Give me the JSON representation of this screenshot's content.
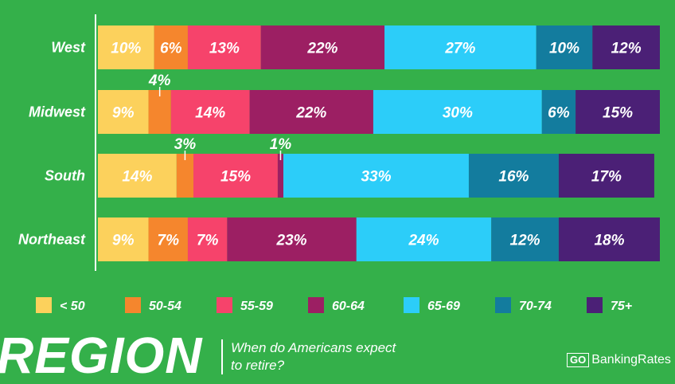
{
  "chart_data": {
    "type": "bar",
    "orientation": "horizontal",
    "stacked": true,
    "categories": [
      "West",
      "Midwest",
      "South",
      "Northeast"
    ],
    "series": [
      {
        "name": "< 50",
        "color": "#fcd15c",
        "values": [
          10,
          9,
          14,
          9
        ]
      },
      {
        "name": "50-54",
        "color": "#f5862d",
        "values": [
          6,
          4,
          3,
          7
        ]
      },
      {
        "name": "55-59",
        "color": "#f6436b",
        "values": [
          13,
          14,
          15,
          7
        ]
      },
      {
        "name": "60-64",
        "color": "#9c1f63",
        "values": [
          22,
          22,
          1,
          23
        ]
      },
      {
        "name": "65-69",
        "color": "#2ccdf9",
        "values": [
          27,
          30,
          33,
          24
        ]
      },
      {
        "name": "70-74",
        "color": "#137c9e",
        "values": [
          10,
          6,
          16,
          12
        ]
      },
      {
        "name": "75+",
        "color": "#4b2076",
        "values": [
          12,
          15,
          17,
          18
        ]
      }
    ],
    "value_suffix": "%",
    "xlim": [
      0,
      100
    ],
    "legend_position": "bottom"
  },
  "footer": {
    "title": "REGION",
    "question": "When do Americans expect to retire?",
    "brand_go": "GO",
    "brand_name": "BankingRates"
  }
}
